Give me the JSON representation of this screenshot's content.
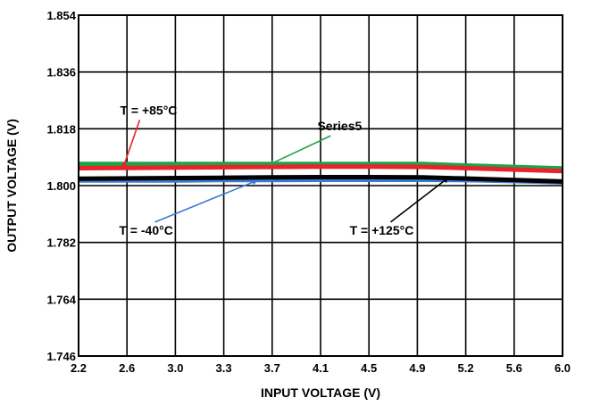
{
  "chart_data": {
    "type": "line",
    "xlabel": "INPUT VOLTAGE (V)",
    "ylabel": "OUTPUT VOLTAGE (V)",
    "x_tick_labels": [
      "2.2",
      "2.6",
      "3.0",
      "3.3",
      "3.7",
      "4.1",
      "4.5",
      "4.9",
      "5.2",
      "5.6",
      "6.0"
    ],
    "y_tick_labels": [
      "1.854",
      "1.836",
      "1.818",
      "1.800",
      "1.782",
      "1.764",
      "1.746"
    ],
    "xlim": [
      2.2,
      6.0
    ],
    "ylim": [
      1.746,
      1.854
    ],
    "grid": true,
    "legend": "none",
    "series": [
      {
        "name": "T = -40°C",
        "color": "#3a7bd5",
        "x": [
          2.2,
          2.6,
          3.0,
          3.3,
          3.7,
          4.1,
          4.5,
          4.9,
          5.2,
          5.6,
          6.0
        ],
        "values": [
          1.8015,
          1.8015,
          1.8015,
          1.8016,
          1.8016,
          1.8017,
          1.8017,
          1.8017,
          1.8016,
          1.8013,
          1.8009
        ]
      },
      {
        "name": "T = +125°C",
        "color": "#000000",
        "x": [
          2.2,
          2.6,
          3.0,
          3.3,
          3.7,
          4.1,
          4.5,
          4.9,
          5.2,
          5.6,
          6.0
        ],
        "values": [
          1.8022,
          1.8023,
          1.8024,
          1.8025,
          1.8026,
          1.8027,
          1.8027,
          1.8026,
          1.8023,
          1.8018,
          1.8013
        ]
      },
      {
        "name": "Series5",
        "color": "#1fa34a",
        "x": [
          2.2,
          2.6,
          3.0,
          3.3,
          3.7,
          4.1,
          4.5,
          4.9,
          5.2,
          5.6,
          6.0
        ],
        "values": [
          1.8067,
          1.8067,
          1.8067,
          1.8067,
          1.8067,
          1.8067,
          1.8067,
          1.8067,
          1.8063,
          1.8058,
          1.8053
        ]
      },
      {
        "name": "T = +85°C",
        "color": "#e8232a",
        "x": [
          2.2,
          2.6,
          3.0,
          3.3,
          3.7,
          4.1,
          4.5,
          4.9,
          5.2,
          5.6,
          6.0
        ],
        "values": [
          1.8055,
          1.8056,
          1.8057,
          1.8058,
          1.8059,
          1.806,
          1.806,
          1.8059,
          1.8056,
          1.8051,
          1.8046
        ]
      }
    ],
    "annotations": [
      {
        "text": "T = +85°C",
        "color": "#e8232a",
        "label_at": [
          2.75,
          1.8225
        ],
        "arrow_to": [
          2.55,
          1.8057
        ]
      },
      {
        "text": "Series5",
        "color": "#1fa34a",
        "label_at": [
          4.25,
          1.8175
        ],
        "arrow_to": [
          3.7,
          1.8067
        ]
      },
      {
        "text": "T = -40°C",
        "color": "#3a7bd5",
        "label_at": [
          2.73,
          1.7845
        ],
        "arrow_to": [
          3.6,
          1.8016
        ]
      },
      {
        "text": "T = +125°C",
        "color": "#000000",
        "label_at": [
          4.58,
          1.7845
        ],
        "arrow_to": [
          5.1,
          1.8024
        ]
      }
    ]
  }
}
